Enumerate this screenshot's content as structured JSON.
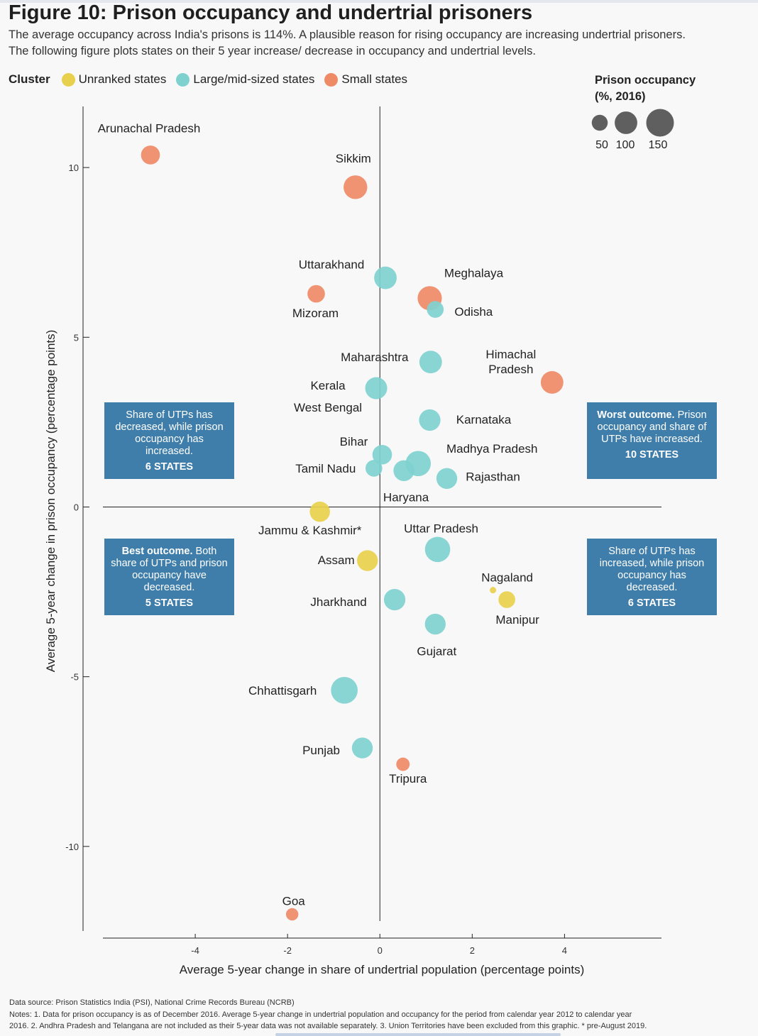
{
  "header": {
    "title": "Figure 10: Prison occupancy and undertrial prisoners",
    "subtitle_line1": "The average occupancy across India's prisons is 114%. A plausible reason for rising occupancy are increasing undertrial prisoners.",
    "subtitle_line2": "The following figure plots states on their 5 year increase/ decrease in occupancy and undertrial levels."
  },
  "legend": {
    "title": "Cluster",
    "items": [
      {
        "label": "Unranked states",
        "color": "#e8d04c"
      },
      {
        "label": "Large/mid-sized states",
        "color": "#7fd1d0"
      },
      {
        "label": "Small states",
        "color": "#ef8a67"
      }
    ]
  },
  "size_legend": {
    "title_line1": "Prison occupancy",
    "title_line2": "(%, 2016)",
    "values": [
      50,
      100,
      150
    ],
    "labels": [
      "50",
      "100",
      "150"
    ]
  },
  "boxes": {
    "top_left": {
      "text": "Share of UTPs has decreased, while prison occupancy has increased.",
      "count": "6 STATES"
    },
    "top_right": {
      "bold": "Worst outcome.",
      "text": "Prison occupancy and share of UTPs have increased.",
      "count": "10 STATES"
    },
    "bottom_left": {
      "bold": "Best outcome.",
      "text": "Both share of UTPs and prison occupancy have decreased.",
      "count": "5 STATES"
    },
    "bottom_right": {
      "text": "Share of UTPs has increased, while prison occupancy has decreased.",
      "count": "6 STATES"
    }
  },
  "chart_data": {
    "type": "scatter",
    "xlabel": "Average 5-year change in share of undertrial population (percentage points)",
    "ylabel": "Average 5-year change in prison occupancy (percentage points)",
    "xlim": [
      -6,
      6.1
    ],
    "ylim": [
      -12.7,
      11.8
    ],
    "xticks": [
      -4,
      -2,
      0,
      2,
      4
    ],
    "yticks": [
      10,
      5,
      0,
      -5,
      -10
    ],
    "xtick_labels": [
      "-4",
      "-2",
      "0",
      "2",
      "4"
    ],
    "ytick_labels": [
      "10",
      "5",
      "0",
      "-5",
      "-10"
    ],
    "points": [
      {
        "label": "Arunachal Pradesh",
        "x": -4.97,
        "y": 10.37,
        "occupancy": 70,
        "cluster": "Small states"
      },
      {
        "label": "Sikkim",
        "x": -0.53,
        "y": 9.42,
        "occupancy": 110,
        "cluster": "Small states"
      },
      {
        "label": "Uttarakhand",
        "x": 0.12,
        "y": 6.75,
        "occupancy": 100,
        "cluster": "Large/mid-sized states"
      },
      {
        "label": "Meghalaya",
        "x": 1.08,
        "y": 6.15,
        "occupancy": 115,
        "cluster": "Small states"
      },
      {
        "label": "Mizoram",
        "x": -1.38,
        "y": 6.28,
        "occupancy": 60,
        "cluster": "Small states"
      },
      {
        "label": "Odisha",
        "x": 1.2,
        "y": 5.82,
        "occupancy": 55,
        "cluster": "Large/mid-sized states"
      },
      {
        "label": "Maharashtra",
        "x": 1.1,
        "y": 4.27,
        "occupancy": 100,
        "cluster": "Large/mid-sized states"
      },
      {
        "label": "Himachal Pradesh",
        "x": 3.73,
        "y": 3.67,
        "occupancy": 100,
        "cluster": "Small states"
      },
      {
        "label": "Kerala",
        "x": -0.08,
        "y": 3.5,
        "occupancy": 95,
        "cluster": "Large/mid-sized states"
      },
      {
        "label": "Karnataka",
        "x": 1.08,
        "y": 2.56,
        "occupancy": 90,
        "cluster": "Large/mid-sized states"
      },
      {
        "label": "Bihar",
        "x": 0.05,
        "y": 1.54,
        "occupancy": 75,
        "cluster": "Large/mid-sized states"
      },
      {
        "label": "Madhya Pradesh",
        "x": 0.83,
        "y": 1.28,
        "occupancy": 125,
        "cluster": "Large/mid-sized states"
      },
      {
        "label": "Tamil Nadu",
        "x": -0.13,
        "y": 1.14,
        "occupancy": 55,
        "cluster": "Large/mid-sized states"
      },
      {
        "label": "Haryana",
        "x": 0.52,
        "y": 1.07,
        "occupancy": 85,
        "cluster": "Large/mid-sized states"
      },
      {
        "label": "Rajasthan",
        "x": 1.45,
        "y": 0.84,
        "occupancy": 85,
        "cluster": "Large/mid-sized states"
      },
      {
        "label": "West Bengal",
        "x": -0.08,
        "y": 3.5,
        "occupancy": 0,
        "cluster": "Large/mid-sized states"
      },
      {
        "label": "Jammu & Kashmir*",
        "x": -1.3,
        "y": -0.14,
        "occupancy": 80,
        "cluster": "Unranked states"
      },
      {
        "label": "Uttar Pradesh",
        "x": 1.25,
        "y": -1.25,
        "occupancy": 125,
        "cluster": "Large/mid-sized states"
      },
      {
        "label": "Assam",
        "x": -0.27,
        "y": -1.58,
        "occupancy": 85,
        "cluster": "Unranked states"
      },
      {
        "label": "Nagaland",
        "x": 2.45,
        "y": -2.45,
        "occupancy": 8,
        "cluster": "Unranked states"
      },
      {
        "label": "Manipur",
        "x": 2.75,
        "y": -2.73,
        "occupancy": 55,
        "cluster": "Unranked states"
      },
      {
        "label": "Jharkhand",
        "x": 0.32,
        "y": -2.73,
        "occupancy": 90,
        "cluster": "Large/mid-sized states"
      },
      {
        "label": "Gujarat",
        "x": 1.2,
        "y": -3.45,
        "occupancy": 85,
        "cluster": "Large/mid-sized states"
      },
      {
        "label": "Chhattisgarh",
        "x": -0.77,
        "y": -5.4,
        "occupancy": 140,
        "cluster": "Large/mid-sized states"
      },
      {
        "label": "Punjab",
        "x": -0.38,
        "y": -7.1,
        "occupancy": 85,
        "cluster": "Large/mid-sized states"
      },
      {
        "label": "Tripura",
        "x": 0.5,
        "y": -7.58,
        "occupancy": 35,
        "cluster": "Small states"
      },
      {
        "label": "Goa",
        "x": -1.9,
        "y": -12.0,
        "occupancy": 30,
        "cluster": "Small states"
      }
    ]
  },
  "footer": {
    "source": "Data source: Prison Statistics India (PSI), National Crime Records Bureau (NCRB)",
    "notes_line1": "Notes: 1. Data for prison occupancy is as of December 2016. Average 5-year change in undertrial population and occupancy for the period from calendar year 2012 to calendar year",
    "notes_line2": "2016. 2. Andhra Pradesh and Telangana are not included as their 5-year data was not available separately. 3. Union Territories have been excluded from this graphic. * pre-August 2019."
  }
}
